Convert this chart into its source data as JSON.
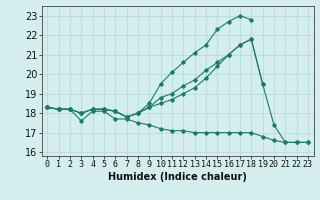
{
  "x_all": [
    0,
    1,
    2,
    3,
    4,
    5,
    6,
    7,
    8,
    9,
    10,
    11,
    12,
    13,
    14,
    15,
    16,
    17,
    18,
    19,
    20,
    21,
    22,
    23
  ],
  "line1": [
    18.3,
    18.2,
    18.2,
    18.0,
    18.2,
    18.2,
    18.1,
    17.8,
    18.0,
    18.3,
    18.8,
    19.0,
    19.4,
    19.7,
    20.2,
    20.6,
    21.0,
    21.5,
    21.8,
    19.5,
    null,
    null,
    null,
    null
  ],
  "line2": [
    18.3,
    18.2,
    18.2,
    18.0,
    18.2,
    18.2,
    18.1,
    17.8,
    18.0,
    18.5,
    19.5,
    20.1,
    20.6,
    21.1,
    21.5,
    22.3,
    22.7,
    23.0,
    22.8,
    null,
    null,
    null,
    null,
    null
  ],
  "line3": [
    18.3,
    18.2,
    18.2,
    18.0,
    18.2,
    18.2,
    18.1,
    17.8,
    18.0,
    18.3,
    18.5,
    18.7,
    19.0,
    19.3,
    19.8,
    20.4,
    21.0,
    21.5,
    21.8,
    19.5,
    17.4,
    16.5,
    16.5,
    16.5
  ],
  "line4": [
    18.3,
    18.2,
    18.2,
    17.6,
    18.1,
    18.1,
    17.7,
    17.7,
    17.5,
    17.4,
    17.2,
    17.1,
    17.1,
    17.0,
    17.0,
    17.0,
    17.0,
    17.0,
    17.0,
    16.8,
    16.6,
    16.5,
    16.5,
    16.5
  ],
  "color": "#1a7a6e",
  "bg_color": "#d4eeee",
  "grid_color": "#b0d8d8",
  "ylim": [
    15.8,
    23.5
  ],
  "yticks": [
    16,
    17,
    18,
    19,
    20,
    21,
    22,
    23
  ],
  "xlabel": "Humidex (Indice chaleur)",
  "xlabel_fontsize": 7,
  "tick_fontsize": 6
}
